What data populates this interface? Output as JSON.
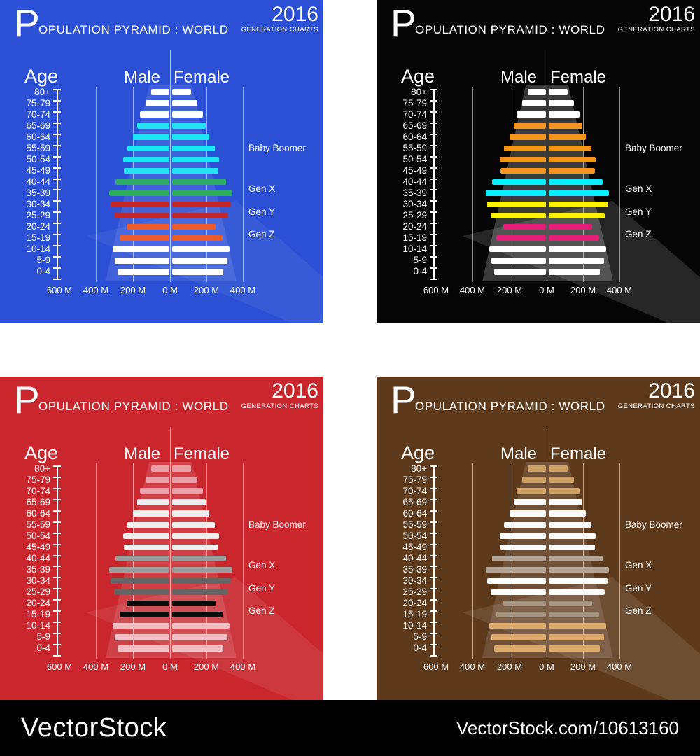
{
  "chart_data": {
    "type": "bar",
    "variant": "population-pyramid",
    "title": "POPULATION PYRAMID : WORLD",
    "title_initial": "P",
    "title_rest": "OPULATION PYRAMID : WORLD",
    "year": "2016",
    "subtitle": "GENERATION CHARTS",
    "column_headings": {
      "age": "Age",
      "male": "Male",
      "female": "Female"
    },
    "x_tick_labels": [
      "600 M",
      "400 M",
      "200 M",
      "0 M",
      "200 M",
      "400 M"
    ],
    "unit": "millions of people",
    "gridlines_m": [
      -400,
      -200,
      0,
      200,
      400
    ],
    "axis_range_m": [
      -600,
      400
    ],
    "categories": [
      "80+",
      "75-79",
      "70-74",
      "65-69",
      "60-64",
      "55-59",
      "50-54",
      "45-49",
      "40-44",
      "35-39",
      "30-34",
      "25-29",
      "20-24",
      "15-19",
      "10-14",
      "5-9",
      "0-4"
    ],
    "series": [
      {
        "name": "Male",
        "values": [
          95,
          125,
          155,
          172,
          196,
          224,
          246,
          244,
          288,
          322,
          317,
          298,
          228,
          265,
          304,
          294,
          279
        ]
      },
      {
        "name": "Female",
        "values": [
          102,
          136,
          167,
          182,
          201,
          230,
          252,
          249,
          289,
          325,
          318,
          302,
          233,
          270,
          308,
          299,
          277
        ]
      }
    ],
    "generation_labels": [
      {
        "label": "Baby Boomer",
        "row": 5
      },
      {
        "label": "Gen X",
        "row": 8.6
      },
      {
        "label": "Gen Y",
        "row": 10.7
      },
      {
        "label": "Gen Z",
        "row": 12.7
      }
    ],
    "legend_position": "right",
    "grid": true
  },
  "bar_color_groups": [
    0,
    0,
    0,
    1,
    1,
    1,
    1,
    1,
    2,
    2,
    3,
    3,
    4,
    4,
    5,
    5,
    5
  ],
  "panels": [
    {
      "id": "blue",
      "bg": "#2b50d5",
      "palette": [
        "#ffffff",
        "#1fe4f5",
        "#2fae60",
        "#bf272e",
        "#f15b25",
        "#ffffff"
      ],
      "pyramid_opacity": 0.1,
      "shadow_opacity": 0.06
    },
    {
      "id": "black",
      "bg": "#060606",
      "palette": [
        "#ffffff",
        "#f7941e",
        "#00f0ff",
        "#fff200",
        "#ec1a77",
        "#ffffff"
      ],
      "pyramid_opacity": 0.21,
      "shadow_opacity": 0.13
    },
    {
      "id": "red",
      "bg": "#c9262e",
      "palette": [
        "#e9a1ab",
        "#f0eff0",
        "#9c9c9c",
        "#656565",
        "#0b0b0b",
        "#f3bfc4"
      ],
      "pyramid_opacity": 0.12,
      "shadow_opacity": 0.08
    },
    {
      "id": "brown",
      "bg": "#5e3a1c",
      "palette": [
        "#cfa064",
        "#fbfbfb",
        "#b3a597",
        "#ffffff",
        "#a49480",
        "#dcaa6c"
      ],
      "pyramid_opacity": 0.12,
      "shadow_opacity": 0.1
    }
  ],
  "watermark": {
    "logo": "VectorStock",
    "code": "VectorStock.com/10613160"
  }
}
